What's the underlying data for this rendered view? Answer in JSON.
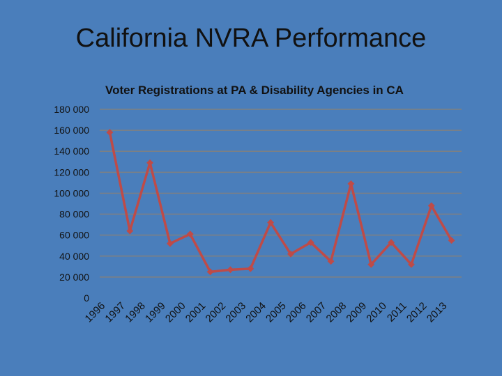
{
  "slide": {
    "title": "California NVRA Performance"
  },
  "chart_data": {
    "type": "line",
    "title": "Voter Registrations at PA & Disability Agencies in CA",
    "xlabel": "",
    "ylabel": "",
    "categories": [
      "1996",
      "1997",
      "1998",
      "1999",
      "2000",
      "2001",
      "2002",
      "2003",
      "2004",
      "2005",
      "2006",
      "2007",
      "2008",
      "2009",
      "2010",
      "2011",
      "2012",
      "2013"
    ],
    "values": [
      158000,
      64000,
      129000,
      52000,
      61000,
      25000,
      27000,
      28000,
      72000,
      42000,
      53000,
      35000,
      109000,
      32000,
      53000,
      32000,
      88000,
      55000
    ],
    "ylim": [
      0,
      180000
    ],
    "yticks": [
      0,
      20000,
      40000,
      60000,
      80000,
      100000,
      120000,
      140000,
      160000,
      180000
    ],
    "ytick_labels": [
      "0",
      "20 000",
      "40 000",
      "60 000",
      "80 000",
      "100 000",
      "120 000",
      "140 000",
      "160 000",
      "180 000"
    ],
    "grid": true,
    "legend": "none",
    "colors": {
      "line": "#be4b48",
      "grid": "#808080",
      "background": "#4a7ebb"
    }
  }
}
